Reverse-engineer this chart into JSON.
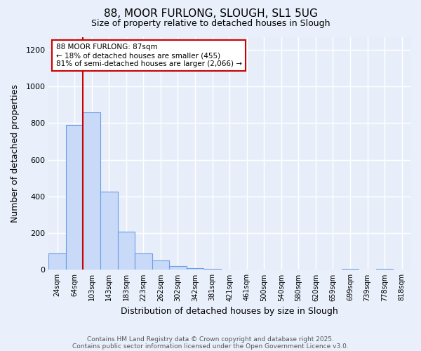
{
  "title": "88, MOOR FURLONG, SLOUGH, SL1 5UG",
  "subtitle": "Size of property relative to detached houses in Slough",
  "xlabel": "Distribution of detached houses by size in Slough",
  "ylabel": "Number of detached properties",
  "bar_values": [
    90,
    790,
    860,
    425,
    210,
    90,
    50,
    20,
    10,
    5,
    0,
    0,
    0,
    0,
    0,
    0,
    0,
    5,
    0,
    5,
    0
  ],
  "bin_labels": [
    "24sqm",
    "64sqm",
    "103sqm",
    "143sqm",
    "183sqm",
    "223sqm",
    "262sqm",
    "302sqm",
    "342sqm",
    "381sqm",
    "421sqm",
    "461sqm",
    "500sqm",
    "540sqm",
    "580sqm",
    "620sqm",
    "659sqm",
    "699sqm",
    "739sqm",
    "778sqm",
    "818sqm"
  ],
  "bar_color": "#c9daf8",
  "bar_edge_color": "#6a9ee8",
  "background_color": "#eaf0fb",
  "plot_bg_color": "#e8eef9",
  "grid_color": "#ffffff",
  "vline_x": 2,
  "vline_color": "#cc0000",
  "annotation_title": "88 MOOR FURLONG: 87sqm",
  "annotation_line1": "← 18% of detached houses are smaller (455)",
  "annotation_line2": "81% of semi-detached houses are larger (2,066) →",
  "annotation_box_color": "#ffffff",
  "annotation_box_edge": "#cc0000",
  "ylim": [
    0,
    1270
  ],
  "yticks": [
    0,
    200,
    400,
    600,
    800,
    1000,
    1200
  ],
  "footer1": "Contains HM Land Registry data © Crown copyright and database right 2025.",
  "footer2": "Contains public sector information licensed under the Open Government Licence v3.0.",
  "figsize": [
    6.0,
    5.0
  ],
  "dpi": 100
}
